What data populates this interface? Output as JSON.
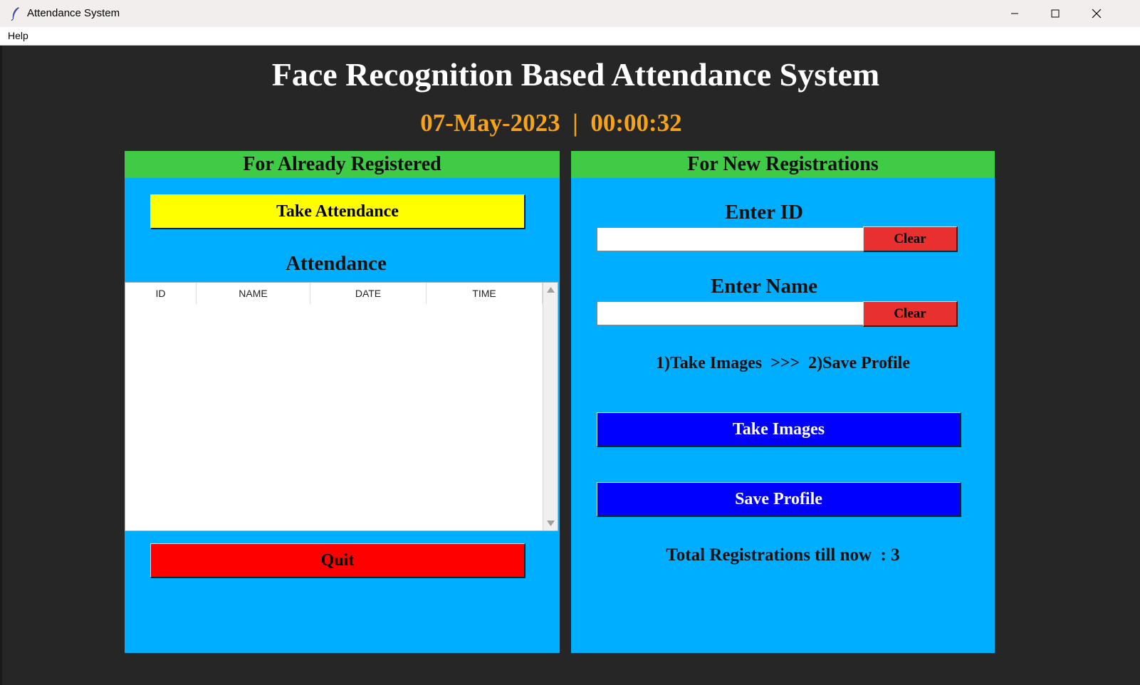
{
  "window": {
    "title": "Attendance System"
  },
  "menu": {
    "help": "Help"
  },
  "header": {
    "title": "Face Recognition Based Attendance System",
    "date": "07-May-2023",
    "separator": "|",
    "time": "00:00:32"
  },
  "left_panel": {
    "header": "For Already Registered",
    "take_attendance_label": "Take Attendance",
    "attendance_heading": "Attendance",
    "columns": [
      "ID",
      "NAME",
      "DATE",
      "TIME"
    ],
    "rows": [],
    "quit_label": "Quit"
  },
  "right_panel": {
    "header": "For New Registrations",
    "enter_id_label": "Enter ID",
    "id_value": "",
    "clear_label": "Clear",
    "enter_name_label": "Enter Name",
    "name_value": "",
    "instructions": "1)Take Images  >>>  2)Save Profile",
    "take_images_label": "Take Images",
    "save_profile_label": "Save Profile",
    "total_registrations": "Total Registrations till now  : 3"
  },
  "colors": {
    "background": "#262626",
    "panel": "#00aeff",
    "panel_header": "#3fcb45",
    "take_attendance": "#ffff00",
    "quit": "#ff0000",
    "clear": "#e8302e",
    "blue_button": "#0000ff",
    "datetime": "#f5a31a"
  }
}
